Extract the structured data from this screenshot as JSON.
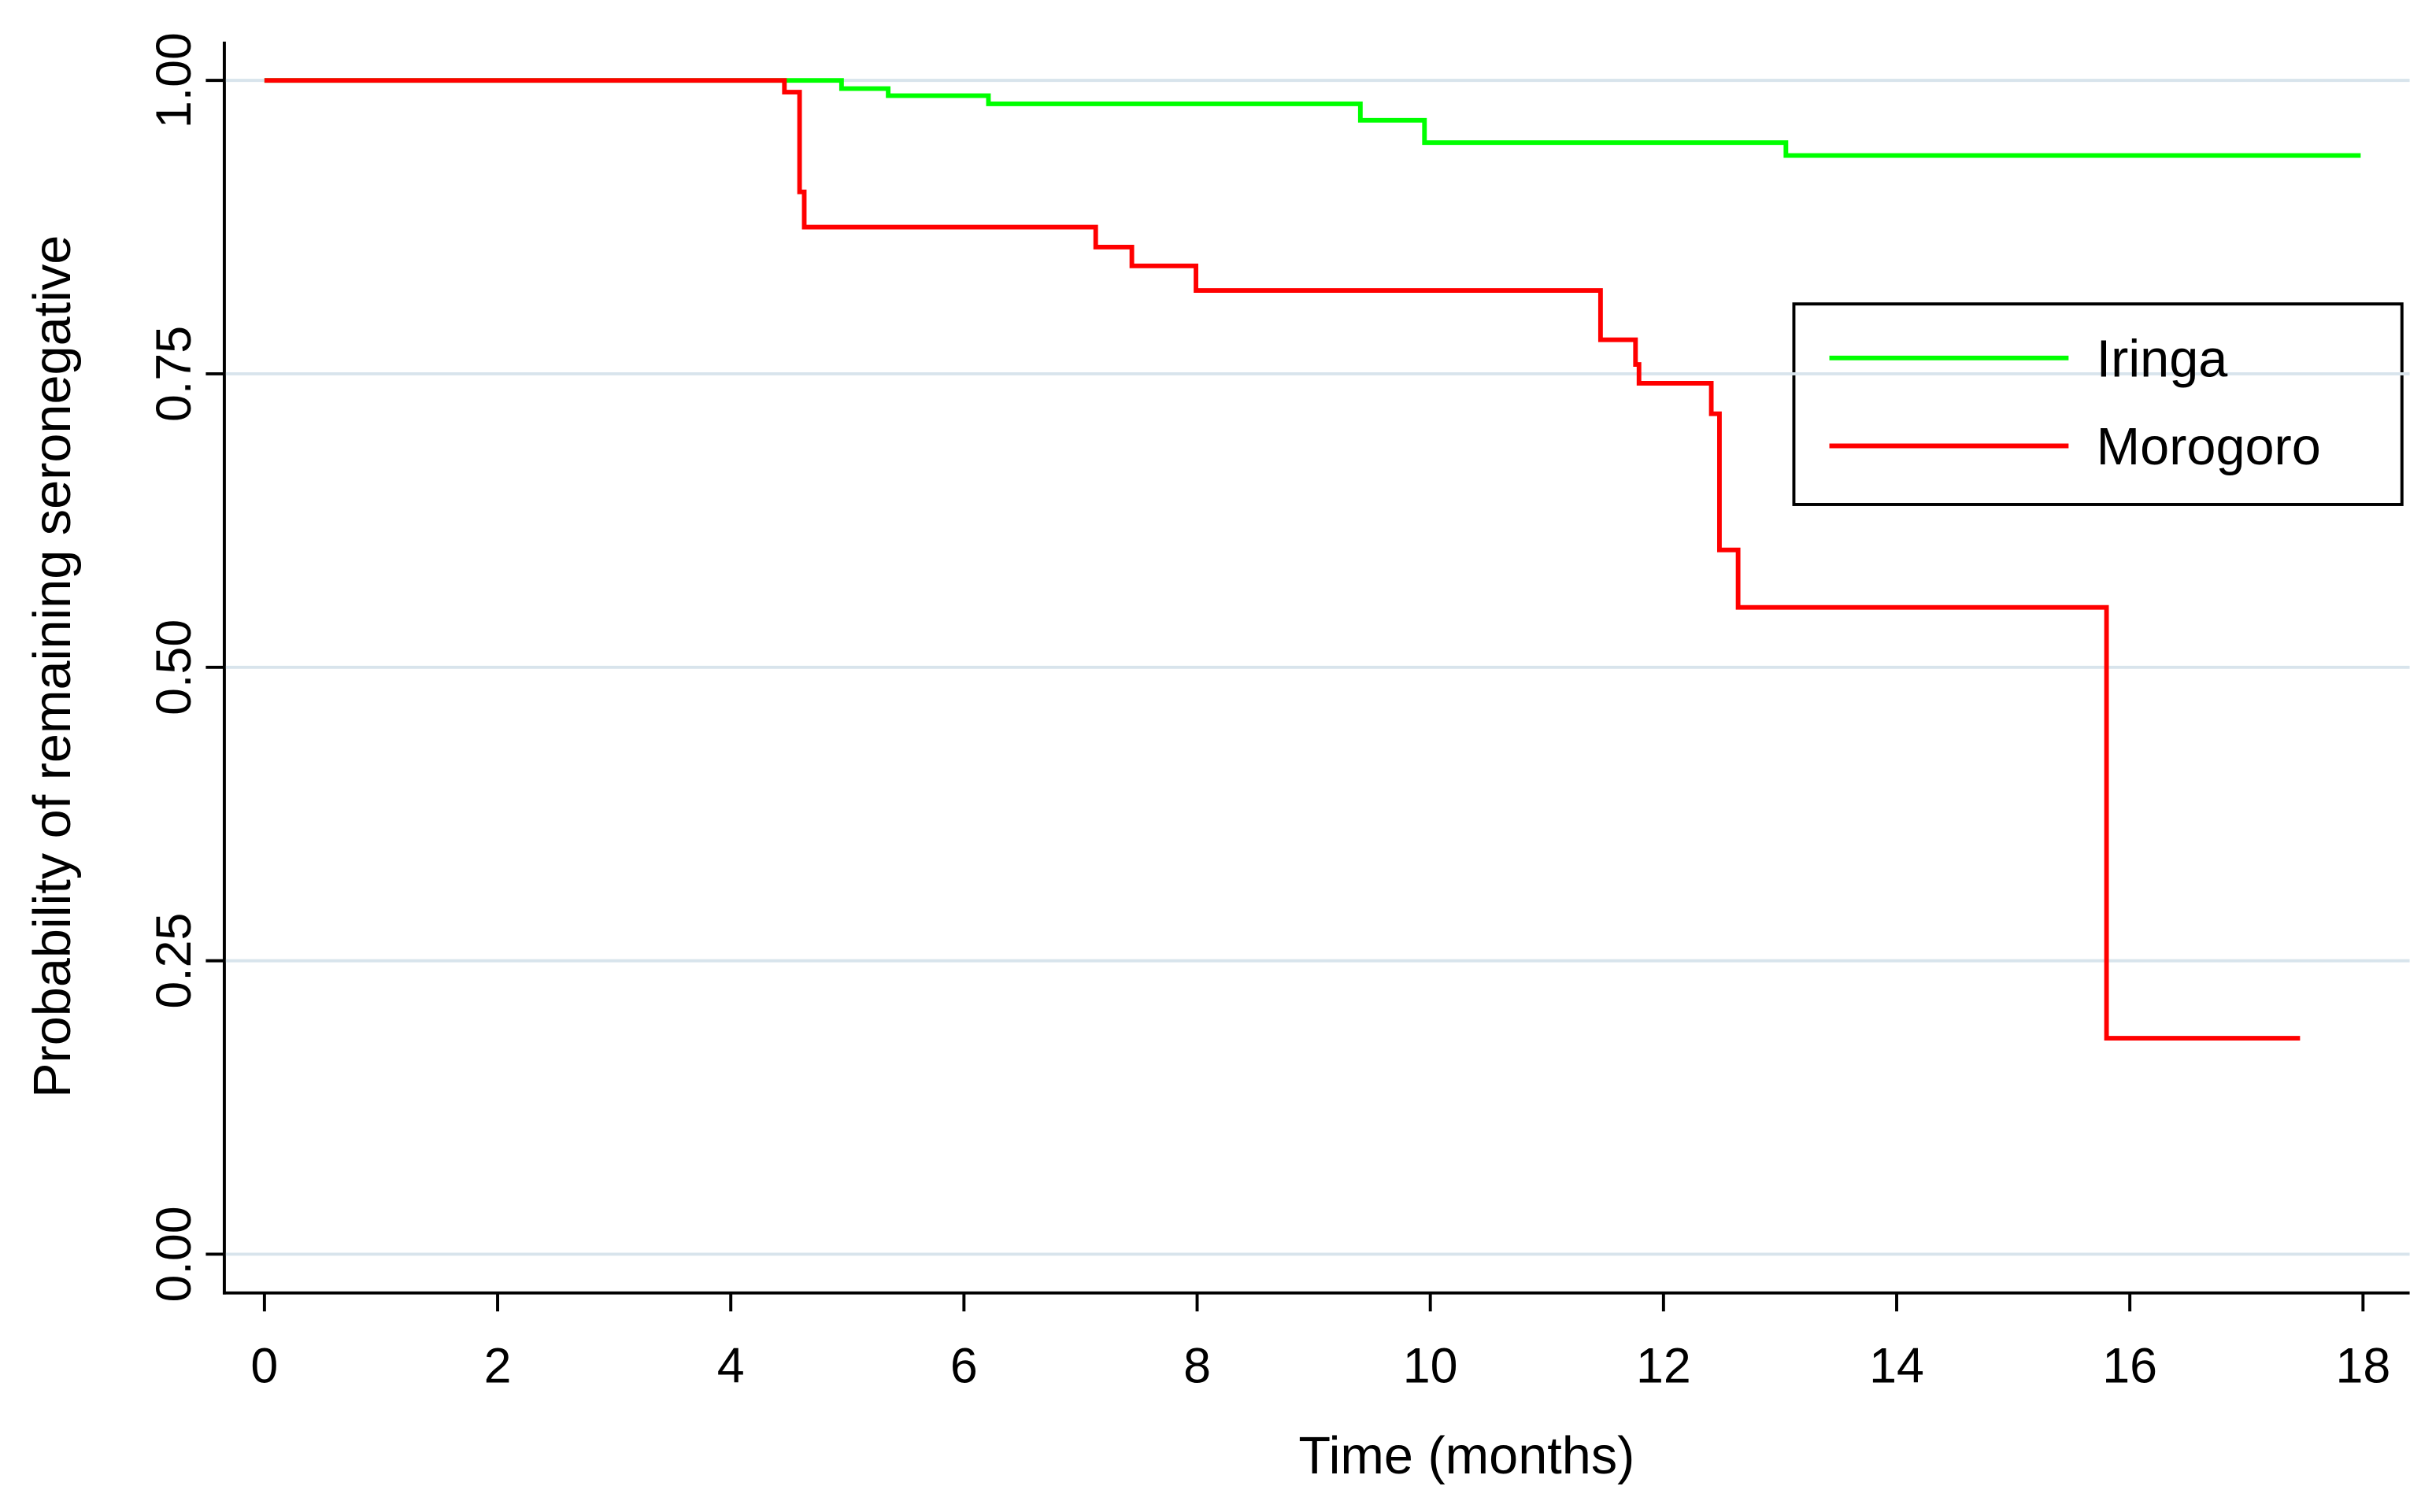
{
  "chart_data": {
    "type": "line",
    "step": true,
    "xlabel": "Time (months)",
    "ylabel": "Probability of remaining  seronegative",
    "xlim": [
      -0.344,
      18.4
    ],
    "ylim": [
      -0.033,
      1.033
    ],
    "xticks": [
      0,
      2,
      4,
      6,
      8,
      10,
      12,
      14,
      16,
      18
    ],
    "yticks": [
      {
        "value": 0,
        "label": "0.00"
      },
      {
        "value": 0.25,
        "label": "0.25"
      },
      {
        "value": 0.5,
        "label": "0.50"
      },
      {
        "value": 0.75,
        "label": "0.75"
      },
      {
        "value": 1,
        "label": "1.00"
      }
    ],
    "grid": true,
    "legend": "upper right",
    "series": [
      {
        "name": "Iringa",
        "color": "#00ff00",
        "x": [
          0,
          4.95,
          5.35,
          6.21,
          9.4,
          9.95,
          13.05,
          17.98
        ],
        "values": [
          1,
          0.993,
          0.987,
          0.98,
          0.966,
          0.947,
          0.936,
          0.936
        ]
      },
      {
        "name": "Morogoro",
        "color": "#ff0000",
        "x": [
          0,
          4.46,
          4.59,
          4.63,
          7.13,
          7.44,
          7.99,
          11.46,
          11.76,
          11.79,
          12.41,
          12.48,
          12.64,
          15.8,
          17.46
        ],
        "values": [
          1,
          0.99,
          0.905,
          0.875,
          0.858,
          0.842,
          0.821,
          0.779,
          0.758,
          0.742,
          0.716,
          0.6,
          0.551,
          0.184,
          0.184
        ]
      }
    ]
  }
}
